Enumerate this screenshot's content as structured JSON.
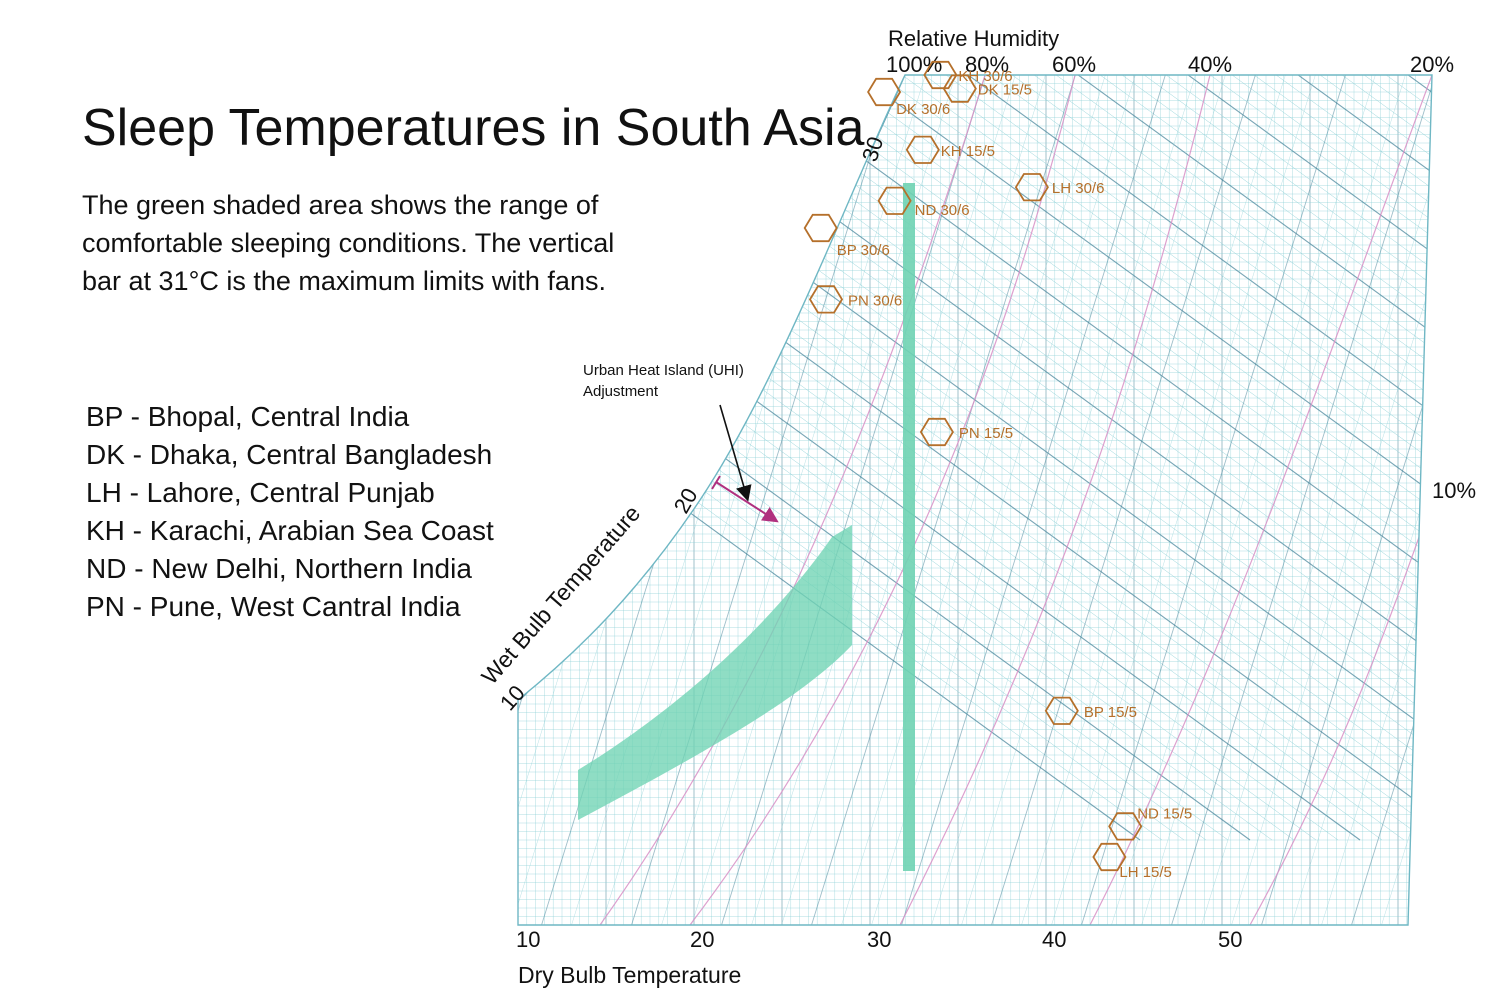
{
  "title": "Sleep Temperatures in South Asia",
  "description": [
    "The green shaded area shows the range of",
    "comfortable sleeping conditions. The vertical",
    "bar at 31°C is the maximum limits with fans."
  ],
  "legend": [
    "BP - Bhopal, Central India",
    "DK - Dhaka, Central Bangladesh",
    "LH - Lahore, Central Punjab",
    "KH - Karachi, Arabian Sea Coast",
    "ND - New Delhi, Northern India",
    "PN - Pune, West Cantral India"
  ],
  "annotation": [
    "Urban Heat Island (UHI)",
    "Adjustment"
  ],
  "colors": {
    "grid": "#8ccfd6",
    "grid_major": "#3f7f95",
    "rh_lines": "#d88fc6",
    "comfort": "#6fd3b3",
    "markers": "#b5702b",
    "uhi": "#b0307f"
  },
  "chart_data": {
    "type": "scatter",
    "xlabel": "Dry Bulb Temperature",
    "x_ticks": [
      "10",
      "20",
      "30",
      "40",
      "50"
    ],
    "wet_bulb_label": "Wet Bulb Temperature",
    "wet_bulb_ticks": [
      "10",
      "20",
      "30"
    ],
    "rh_title": "Relative Humidity",
    "rh_ticks": [
      "100%",
      "80%",
      "60%",
      "40%",
      "20%",
      "10%"
    ],
    "xlim": [
      10,
      60
    ],
    "comfort_zone": {
      "dry_bulb_range": [
        13,
        28.5
      ],
      "max_with_fans": 31
    },
    "points": [
      {
        "label": "KH 30/6",
        "dry_bulb": 34.0,
        "humidity_ratio": 25.0
      },
      {
        "label": "DK 15/5",
        "dry_bulb": 35.1,
        "humidity_ratio": 24.6
      },
      {
        "label": "DK 30/6",
        "dry_bulb": 30.8,
        "humidity_ratio": 24.5
      },
      {
        "label": "KH 15/5",
        "dry_bulb": 33.0,
        "humidity_ratio": 22.8
      },
      {
        "label": "LH 30/6",
        "dry_bulb": 39.2,
        "humidity_ratio": 21.7
      },
      {
        "label": "ND 30/6",
        "dry_bulb": 31.4,
        "humidity_ratio": 21.3
      },
      {
        "label": "BP 30/6",
        "dry_bulb": 27.2,
        "humidity_ratio": 20.5
      },
      {
        "label": "PN 30/6",
        "dry_bulb": 27.5,
        "humidity_ratio": 18.4
      },
      {
        "label": "PN 15/5",
        "dry_bulb": 33.8,
        "humidity_ratio": 14.5
      },
      {
        "label": "BP 15/5",
        "dry_bulb": 40.9,
        "humidity_ratio": 6.3
      },
      {
        "label": "ND 15/5",
        "dry_bulb": 44.5,
        "humidity_ratio": 2.9
      },
      {
        "label": "LH 15/5",
        "dry_bulb": 43.6,
        "humidity_ratio": 2.0
      }
    ]
  }
}
